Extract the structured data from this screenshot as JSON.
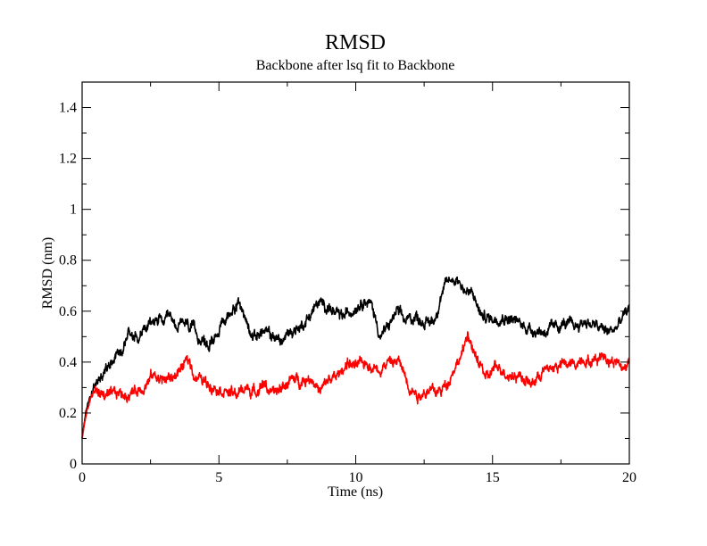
{
  "chart_data": {
    "type": "line",
    "title": "RMSD",
    "subtitle": "Backbone after lsq fit to Backbone",
    "xlabel": "Time (ns)",
    "ylabel": "RMSD (nm)",
    "xlim": [
      0,
      20
    ],
    "ylim": [
      0,
      1.5
    ],
    "x_ticks": [
      0,
      5,
      10,
      15,
      20
    ],
    "y_ticks": [
      0,
      0.2,
      0.4,
      0.6,
      0.8,
      1,
      1.2,
      1.4
    ],
    "grid": false,
    "legend": "none",
    "noise_amplitude": 0.022,
    "series": [
      {
        "color": "#000000",
        "points": [
          [
            0,
            0.1
          ],
          [
            0.1,
            0.18
          ],
          [
            0.2,
            0.23
          ],
          [
            0.3,
            0.27
          ],
          [
            0.45,
            0.3
          ],
          [
            0.6,
            0.33
          ],
          [
            0.8,
            0.36
          ],
          [
            1.0,
            0.4
          ],
          [
            1.2,
            0.43
          ],
          [
            1.5,
            0.46
          ],
          [
            1.7,
            0.52
          ],
          [
            2.0,
            0.5
          ],
          [
            2.2,
            0.52
          ],
          [
            2.5,
            0.55
          ],
          [
            2.8,
            0.57
          ],
          [
            3.0,
            0.55
          ],
          [
            3.2,
            0.57
          ],
          [
            3.5,
            0.54
          ],
          [
            3.8,
            0.55
          ],
          [
            4.0,
            0.53
          ],
          [
            4.3,
            0.5
          ],
          [
            4.6,
            0.46
          ],
          [
            4.8,
            0.5
          ],
          [
            5.0,
            0.53
          ],
          [
            5.3,
            0.57
          ],
          [
            5.6,
            0.63
          ],
          [
            5.8,
            0.62
          ],
          [
            6.0,
            0.56
          ],
          [
            6.3,
            0.5
          ],
          [
            6.6,
            0.52
          ],
          [
            7.0,
            0.5
          ],
          [
            7.3,
            0.48
          ],
          [
            7.6,
            0.52
          ],
          [
            8.0,
            0.54
          ],
          [
            8.3,
            0.58
          ],
          [
            8.6,
            0.63
          ],
          [
            9.0,
            0.62
          ],
          [
            9.3,
            0.58
          ],
          [
            9.6,
            0.58
          ],
          [
            10.0,
            0.62
          ],
          [
            10.3,
            0.65
          ],
          [
            10.6,
            0.62
          ],
          [
            10.9,
            0.5
          ],
          [
            11.2,
            0.54
          ],
          [
            11.5,
            0.6
          ],
          [
            11.8,
            0.56
          ],
          [
            12.2,
            0.58
          ],
          [
            12.6,
            0.55
          ],
          [
            12.9,
            0.57
          ],
          [
            13.1,
            0.66
          ],
          [
            13.4,
            0.72
          ],
          [
            13.7,
            0.73
          ],
          [
            14.0,
            0.68
          ],
          [
            14.3,
            0.66
          ],
          [
            14.6,
            0.58
          ],
          [
            15.0,
            0.57
          ],
          [
            15.3,
            0.58
          ],
          [
            15.7,
            0.57
          ],
          [
            16.0,
            0.55
          ],
          [
            16.4,
            0.53
          ],
          [
            16.8,
            0.52
          ],
          [
            17.2,
            0.53
          ],
          [
            17.6,
            0.55
          ],
          [
            18.0,
            0.54
          ],
          [
            18.4,
            0.56
          ],
          [
            18.8,
            0.54
          ],
          [
            19.2,
            0.52
          ],
          [
            19.5,
            0.53
          ],
          [
            19.8,
            0.58
          ],
          [
            20.0,
            0.61
          ]
        ]
      },
      {
        "color": "#ff0000",
        "points": [
          [
            0,
            0.1
          ],
          [
            0.1,
            0.17
          ],
          [
            0.2,
            0.22
          ],
          [
            0.3,
            0.26
          ],
          [
            0.5,
            0.29
          ],
          [
            0.8,
            0.27
          ],
          [
            1.0,
            0.26
          ],
          [
            1.3,
            0.28
          ],
          [
            1.6,
            0.27
          ],
          [
            2.0,
            0.29
          ],
          [
            2.3,
            0.31
          ],
          [
            2.6,
            0.35
          ],
          [
            3.0,
            0.33
          ],
          [
            3.3,
            0.34
          ],
          [
            3.6,
            0.37
          ],
          [
            3.9,
            0.41
          ],
          [
            4.1,
            0.35
          ],
          [
            4.5,
            0.32
          ],
          [
            4.8,
            0.31
          ],
          [
            5.2,
            0.29
          ],
          [
            5.6,
            0.27
          ],
          [
            6.0,
            0.3
          ],
          [
            6.3,
            0.28
          ],
          [
            6.6,
            0.32
          ],
          [
            7.0,
            0.27
          ],
          [
            7.3,
            0.3
          ],
          [
            7.6,
            0.33
          ],
          [
            8.0,
            0.33
          ],
          [
            8.4,
            0.34
          ],
          [
            8.7,
            0.28
          ],
          [
            9.0,
            0.33
          ],
          [
            9.3,
            0.34
          ],
          [
            9.7,
            0.4
          ],
          [
            10.0,
            0.38
          ],
          [
            10.4,
            0.4
          ],
          [
            10.8,
            0.37
          ],
          [
            11.2,
            0.4
          ],
          [
            11.6,
            0.4
          ],
          [
            12.0,
            0.3
          ],
          [
            12.3,
            0.27
          ],
          [
            12.6,
            0.29
          ],
          [
            13.0,
            0.28
          ],
          [
            13.3,
            0.31
          ],
          [
            13.6,
            0.38
          ],
          [
            13.9,
            0.43
          ],
          [
            14.1,
            0.52
          ],
          [
            14.3,
            0.43
          ],
          [
            14.6,
            0.38
          ],
          [
            14.8,
            0.33
          ],
          [
            15.0,
            0.37
          ],
          [
            15.3,
            0.38
          ],
          [
            15.6,
            0.35
          ],
          [
            16.0,
            0.35
          ],
          [
            16.4,
            0.31
          ],
          [
            16.8,
            0.36
          ],
          [
            17.2,
            0.38
          ],
          [
            17.6,
            0.39
          ],
          [
            18.0,
            0.39
          ],
          [
            18.3,
            0.42
          ],
          [
            18.6,
            0.4
          ],
          [
            19.0,
            0.43
          ],
          [
            19.3,
            0.41
          ],
          [
            19.6,
            0.4
          ],
          [
            19.8,
            0.37
          ],
          [
            20.0,
            0.41
          ]
        ]
      }
    ]
  }
}
